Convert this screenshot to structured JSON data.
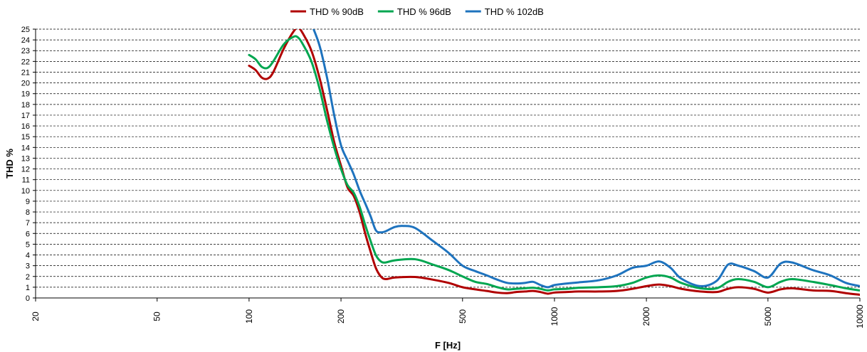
{
  "chart_data": {
    "type": "line",
    "xscale": "log",
    "xlabel": "F [Hz]",
    "ylabel": "THD %",
    "xlim": [
      20,
      10000
    ],
    "ylim": [
      0,
      25
    ],
    "x_ticks": [
      20,
      50,
      100,
      200,
      500,
      1000,
      2000,
      5000,
      10000
    ],
    "y_ticks": [
      0,
      1,
      2,
      3,
      4,
      5,
      6,
      7,
      8,
      9,
      10,
      11,
      12,
      13,
      14,
      15,
      16,
      17,
      18,
      19,
      20,
      21,
      22,
      23,
      24,
      25
    ],
    "grid": "horizontal dashed",
    "legend_position": "top-center",
    "series": [
      {
        "name": "THD % 90dB",
        "color": "#b00000",
        "points": [
          [
            100,
            21.6
          ],
          [
            105,
            21.2
          ],
          [
            110,
            20.5
          ],
          [
            115,
            20.4
          ],
          [
            120,
            21.0
          ],
          [
            130,
            23.2
          ],
          [
            140,
            24.8
          ],
          [
            145,
            25.1
          ],
          [
            150,
            24.6
          ],
          [
            160,
            23.0
          ],
          [
            170,
            20.5
          ],
          [
            180,
            17.5
          ],
          [
            190,
            14.5
          ],
          [
            200,
            12.3
          ],
          [
            210,
            10.3
          ],
          [
            220,
            9.5
          ],
          [
            230,
            8.0
          ],
          [
            240,
            6.0
          ],
          [
            250,
            4.3
          ],
          [
            260,
            2.8
          ],
          [
            270,
            2.0
          ],
          [
            280,
            1.75
          ],
          [
            300,
            1.9
          ],
          [
            350,
            1.95
          ],
          [
            400,
            1.7
          ],
          [
            450,
            1.4
          ],
          [
            500,
            1.0
          ],
          [
            550,
            0.8
          ],
          [
            600,
            0.65
          ],
          [
            650,
            0.5
          ],
          [
            700,
            0.45
          ],
          [
            750,
            0.55
          ],
          [
            800,
            0.6
          ],
          [
            850,
            0.65
          ],
          [
            900,
            0.55
          ],
          [
            950,
            0.4
          ],
          [
            1000,
            0.5
          ],
          [
            1100,
            0.55
          ],
          [
            1200,
            0.6
          ],
          [
            1400,
            0.6
          ],
          [
            1600,
            0.65
          ],
          [
            1800,
            0.85
          ],
          [
            2000,
            1.1
          ],
          [
            2200,
            1.25
          ],
          [
            2400,
            1.1
          ],
          [
            2600,
            0.85
          ],
          [
            3000,
            0.6
          ],
          [
            3400,
            0.55
          ],
          [
            3700,
            0.85
          ],
          [
            4000,
            1.0
          ],
          [
            4500,
            0.85
          ],
          [
            5000,
            0.5
          ],
          [
            5500,
            0.8
          ],
          [
            6000,
            0.9
          ],
          [
            7000,
            0.7
          ],
          [
            8000,
            0.65
          ],
          [
            9000,
            0.45
          ],
          [
            10000,
            0.3
          ]
        ]
      },
      {
        "name": "THD % 96dB",
        "color": "#00a650",
        "points": [
          [
            100,
            22.6
          ],
          [
            105,
            22.2
          ],
          [
            110,
            21.5
          ],
          [
            115,
            21.4
          ],
          [
            120,
            22.0
          ],
          [
            130,
            23.6
          ],
          [
            140,
            24.3
          ],
          [
            145,
            24.2
          ],
          [
            150,
            23.6
          ],
          [
            160,
            22.0
          ],
          [
            170,
            19.5
          ],
          [
            180,
            16.5
          ],
          [
            190,
            14.0
          ],
          [
            200,
            12.0
          ],
          [
            210,
            10.5
          ],
          [
            220,
            9.8
          ],
          [
            230,
            8.5
          ],
          [
            240,
            6.8
          ],
          [
            250,
            5.3
          ],
          [
            260,
            4.0
          ],
          [
            270,
            3.4
          ],
          [
            280,
            3.3
          ],
          [
            300,
            3.5
          ],
          [
            350,
            3.6
          ],
          [
            400,
            3.1
          ],
          [
            450,
            2.6
          ],
          [
            500,
            2.0
          ],
          [
            550,
            1.5
          ],
          [
            600,
            1.3
          ],
          [
            650,
            1.0
          ],
          [
            700,
            0.8
          ],
          [
            750,
            0.85
          ],
          [
            800,
            0.9
          ],
          [
            850,
            0.95
          ],
          [
            900,
            0.85
          ],
          [
            950,
            0.7
          ],
          [
            1000,
            0.8
          ],
          [
            1100,
            0.85
          ],
          [
            1200,
            0.95
          ],
          [
            1400,
            1.0
          ],
          [
            1600,
            1.1
          ],
          [
            1800,
            1.4
          ],
          [
            2000,
            1.9
          ],
          [
            2200,
            2.1
          ],
          [
            2400,
            1.9
          ],
          [
            2600,
            1.4
          ],
          [
            3000,
            0.9
          ],
          [
            3400,
            0.9
          ],
          [
            3700,
            1.5
          ],
          [
            4000,
            1.75
          ],
          [
            4500,
            1.5
          ],
          [
            5000,
            1.0
          ],
          [
            5500,
            1.5
          ],
          [
            6000,
            1.75
          ],
          [
            7000,
            1.5
          ],
          [
            8000,
            1.2
          ],
          [
            9000,
            0.9
          ],
          [
            10000,
            0.7
          ]
        ]
      },
      {
        "name": "THD % 102dB",
        "color": "#1e73be",
        "points": [
          [
            160,
            25.5
          ],
          [
            170,
            23.5
          ],
          [
            180,
            20.5
          ],
          [
            190,
            17.0
          ],
          [
            200,
            14.2
          ],
          [
            210,
            12.8
          ],
          [
            220,
            11.5
          ],
          [
            230,
            10.0
          ],
          [
            240,
            8.8
          ],
          [
            250,
            7.6
          ],
          [
            260,
            6.3
          ],
          [
            270,
            6.1
          ],
          [
            280,
            6.2
          ],
          [
            300,
            6.6
          ],
          [
            320,
            6.7
          ],
          [
            350,
            6.5
          ],
          [
            400,
            5.3
          ],
          [
            450,
            4.2
          ],
          [
            500,
            3.0
          ],
          [
            550,
            2.5
          ],
          [
            600,
            2.1
          ],
          [
            650,
            1.7
          ],
          [
            700,
            1.4
          ],
          [
            750,
            1.35
          ],
          [
            800,
            1.4
          ],
          [
            850,
            1.5
          ],
          [
            900,
            1.2
          ],
          [
            950,
            1.0
          ],
          [
            1000,
            1.2
          ],
          [
            1100,
            1.35
          ],
          [
            1200,
            1.45
          ],
          [
            1400,
            1.65
          ],
          [
            1600,
            2.1
          ],
          [
            1800,
            2.8
          ],
          [
            2000,
            3.0
          ],
          [
            2200,
            3.4
          ],
          [
            2400,
            2.8
          ],
          [
            2600,
            1.8
          ],
          [
            3000,
            1.1
          ],
          [
            3400,
            1.6
          ],
          [
            3700,
            3.1
          ],
          [
            4000,
            3.0
          ],
          [
            4500,
            2.5
          ],
          [
            5000,
            1.9
          ],
          [
            5500,
            3.2
          ],
          [
            6000,
            3.3
          ],
          [
            7000,
            2.6
          ],
          [
            8000,
            2.1
          ],
          [
            9000,
            1.4
          ],
          [
            10000,
            1.1
          ]
        ]
      }
    ]
  }
}
